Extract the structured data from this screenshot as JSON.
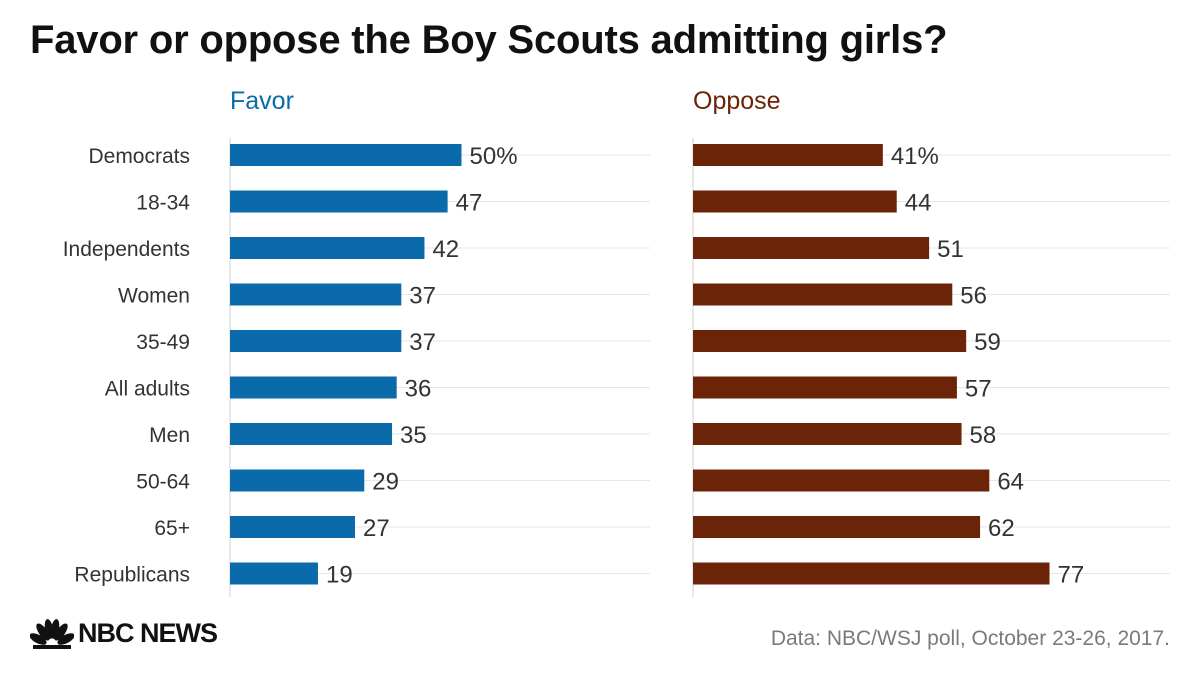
{
  "chart_data": {
    "type": "bar",
    "title": "Favor or oppose the Boy Scouts admitting girls?",
    "categories": [
      "Democrats",
      "18-34",
      "Independents",
      "Women",
      "35-49",
      "All adults",
      "Men",
      "50-64",
      "65+",
      "Republicans"
    ],
    "series": [
      {
        "name": "Favor",
        "color": "#0b6aaa",
        "values": [
          50,
          47,
          42,
          37,
          37,
          36,
          35,
          29,
          27,
          19
        ],
        "labels": [
          "50%",
          "47",
          "42",
          "37",
          "37",
          "36",
          "35",
          "29",
          "27",
          "19"
        ]
      },
      {
        "name": "Oppose",
        "color": "#6b2407",
        "values": [
          41,
          44,
          51,
          56,
          59,
          57,
          58,
          64,
          62,
          77
        ],
        "labels": [
          "41%",
          "44",
          "51",
          "56",
          "59",
          "57",
          "58",
          "64",
          "62",
          "77"
        ]
      }
    ],
    "xlim": [
      0,
      100
    ],
    "orientation": "horizontal",
    "grid": true,
    "colors": {
      "gridline": "#e6e6e6",
      "axis": "#d0d0d0",
      "label": "#333333"
    }
  },
  "footer": {
    "logo_text": "NBC NEWS",
    "source": "Data: NBC/WSJ poll, October 23-26, 2017."
  }
}
